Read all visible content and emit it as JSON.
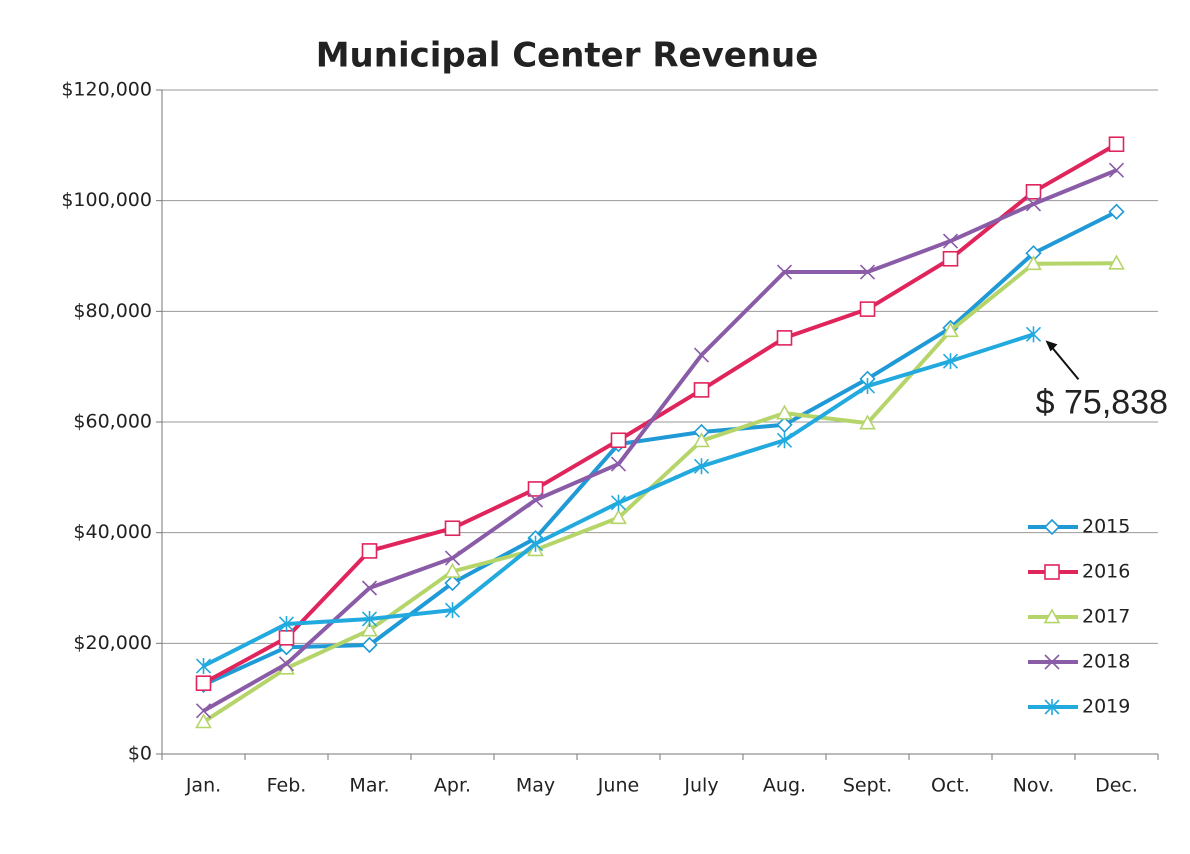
{
  "chart_data": {
    "type": "line",
    "title": "Municipal Center Revenue",
    "categories": [
      "Jan.",
      "Feb.",
      "Mar.",
      "Apr.",
      "May",
      "June",
      "July",
      "Aug.",
      "Sept.",
      "Oct.",
      "Nov.",
      "Dec."
    ],
    "series": [
      {
        "name": "2015",
        "color": "#1f9ad6",
        "marker": "diamond",
        "values": [
          12500,
          19300,
          19700,
          30900,
          39000,
          56000,
          58200,
          59500,
          67800,
          77000,
          90500,
          98000
        ]
      },
      {
        "name": "2016",
        "color": "#e0245c",
        "marker": "square",
        "values": [
          12800,
          21000,
          36700,
          40800,
          47900,
          56700,
          65800,
          75200,
          80400,
          89500,
          101600,
          110200
        ]
      },
      {
        "name": "2017",
        "color": "#b5d56a",
        "marker": "triangle",
        "values": [
          5800,
          15500,
          22400,
          33000,
          36900,
          42700,
          56600,
          61600,
          59800,
          76500,
          88600,
          88700
        ]
      },
      {
        "name": "2018",
        "color": "#8a5ca8",
        "marker": "x",
        "values": [
          7800,
          16300,
          30000,
          35400,
          45900,
          52400,
          72100,
          87100,
          87100,
          92700,
          99400,
          105500
        ]
      },
      {
        "name": "2019",
        "color": "#22aadf",
        "marker": "asterisk",
        "values": [
          15900,
          23500,
          24400,
          26000,
          38000,
          45400,
          52000,
          56700,
          66500,
          71000,
          75838,
          null
        ]
      }
    ],
    "annotation": {
      "text": "$ 75,838",
      "series": 4,
      "index": 10
    },
    "ylim": [
      0,
      120000
    ],
    "yticks": [
      {
        "value": 0,
        "label": "$0"
      },
      {
        "value": 20000,
        "label": "$20,000"
      },
      {
        "value": 40000,
        "label": "$40,000"
      },
      {
        "value": 60000,
        "label": "$60,000"
      },
      {
        "value": 80000,
        "label": "$80,000"
      },
      {
        "value": 100000,
        "label": "$100,000"
      },
      {
        "value": 120000,
        "label": "$120,000"
      }
    ],
    "grid": true,
    "legend": "right"
  }
}
